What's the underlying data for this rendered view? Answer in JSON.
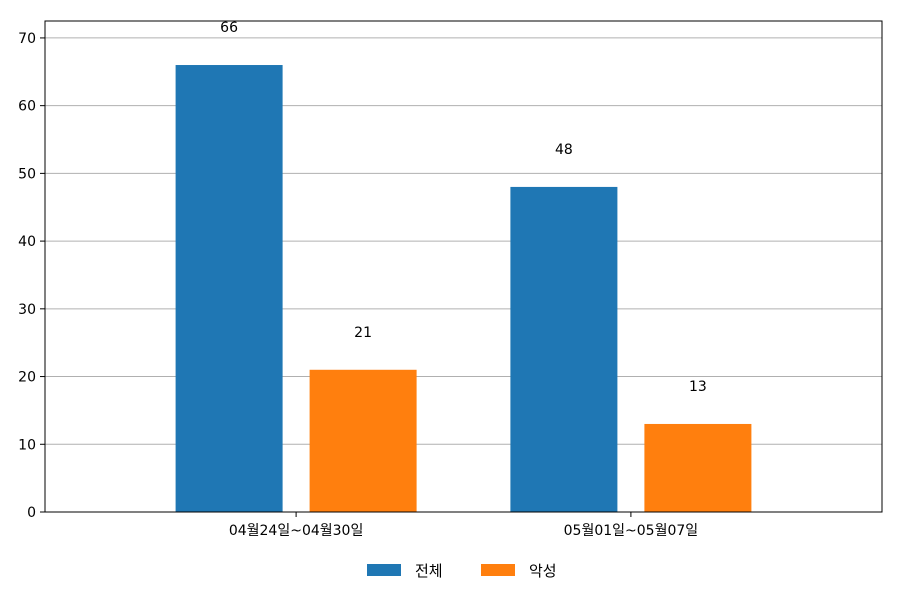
{
  "chart_data": {
    "type": "bar",
    "categories": [
      "04월24일~04월30일",
      "05월01일~05월07일"
    ],
    "series": [
      {
        "name": "전체",
        "values": [
          66,
          48
        ],
        "color": "#1f77b4"
      },
      {
        "name": "악성",
        "values": [
          21,
          13
        ],
        "color": "#ff7f0e"
      }
    ],
    "ylim": [
      0,
      72.5
    ],
    "yticks": [
      "0",
      "10",
      "20",
      "30",
      "40",
      "50",
      "60",
      "70"
    ],
    "grid": true,
    "legend_position": "bottom-center",
    "data_labels": true
  }
}
